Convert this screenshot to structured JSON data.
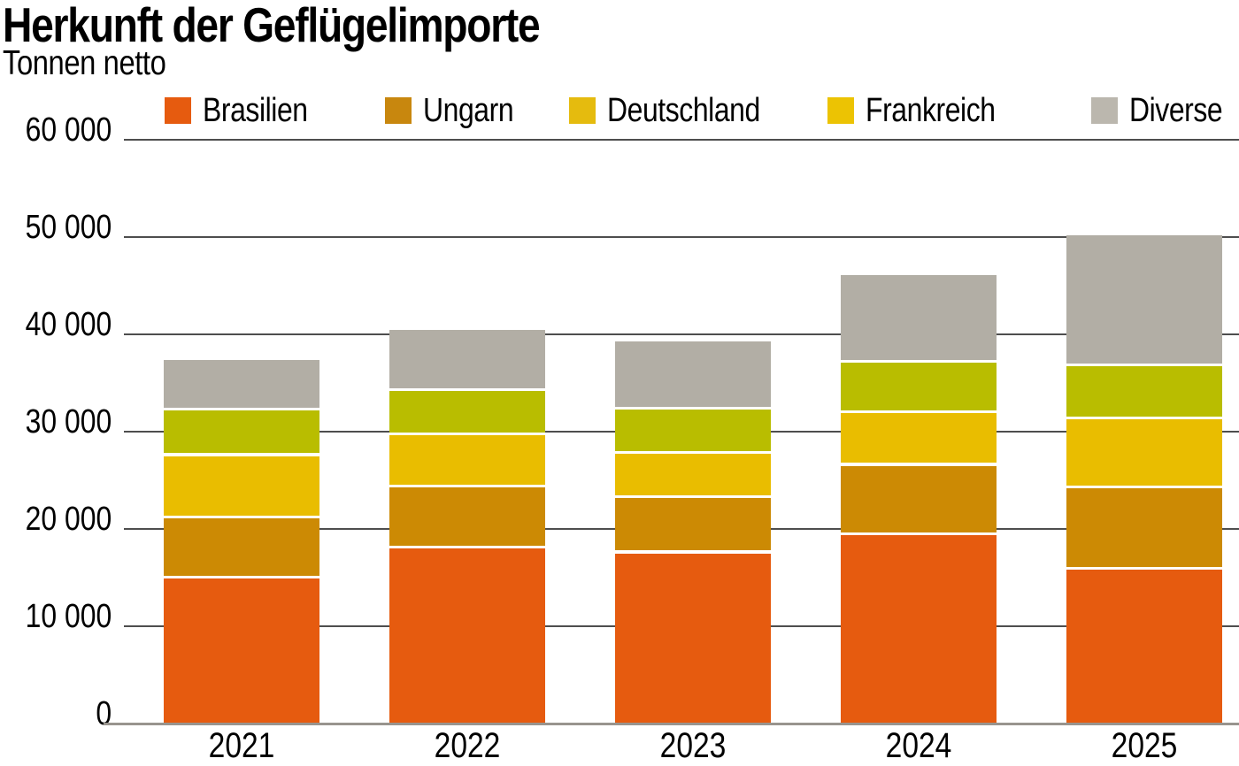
{
  "title": "Herkunft der Geflügelimporte",
  "subtitle": "Tonnen netto",
  "chart_data": {
    "type": "bar",
    "stacked": true,
    "title": "Herkunft der Geflügelimporte",
    "subtitle": "Tonnen netto",
    "ylabel": "Tonnen netto",
    "xlabel": "",
    "ylim": [
      0,
      60000
    ],
    "grid": "horizontal",
    "legend_position": "top",
    "categories": [
      "2021",
      "2022",
      "2023",
      "2024",
      "2025"
    ],
    "series": [
      {
        "name": "Brasilien",
        "color": "#e65b0f",
        "legend_color": "#e65b0f",
        "values": [
          14900,
          18000,
          17500,
          19400,
          15800
        ]
      },
      {
        "name": "Ungarn",
        "color": "#cc8a04",
        "legend_color": "#c8870e",
        "values": [
          6200,
          6300,
          5700,
          7100,
          8400
        ]
      },
      {
        "name": "Deutschland",
        "color": "#e9bd00",
        "legend_color": "#e5bb0e",
        "values": [
          6400,
          5300,
          4500,
          5400,
          7100
        ]
      },
      {
        "name": "Frankreich",
        "color": "#b9bd00",
        "legend_color": "#ecc303",
        "values": [
          4700,
          4600,
          4600,
          5200,
          5400
        ]
      },
      {
        "name": "Diverse",
        "color": "#b2aea5",
        "legend_color": "#bbb7ae",
        "values": [
          5200,
          6300,
          7000,
          9000,
          13500
        ]
      }
    ],
    "totals": [
      37400,
      40500,
      39300,
      46100,
      50200
    ],
    "y_ticks": [
      {
        "value": 0,
        "label": "0"
      },
      {
        "value": 10000,
        "label": "10 000"
      },
      {
        "value": 20000,
        "label": "20 000"
      },
      {
        "value": 30000,
        "label": "30 000"
      },
      {
        "value": 40000,
        "label": "40 000"
      },
      {
        "value": 50000,
        "label": "50 000"
      },
      {
        "value": 60000,
        "label": "60 000"
      }
    ]
  }
}
